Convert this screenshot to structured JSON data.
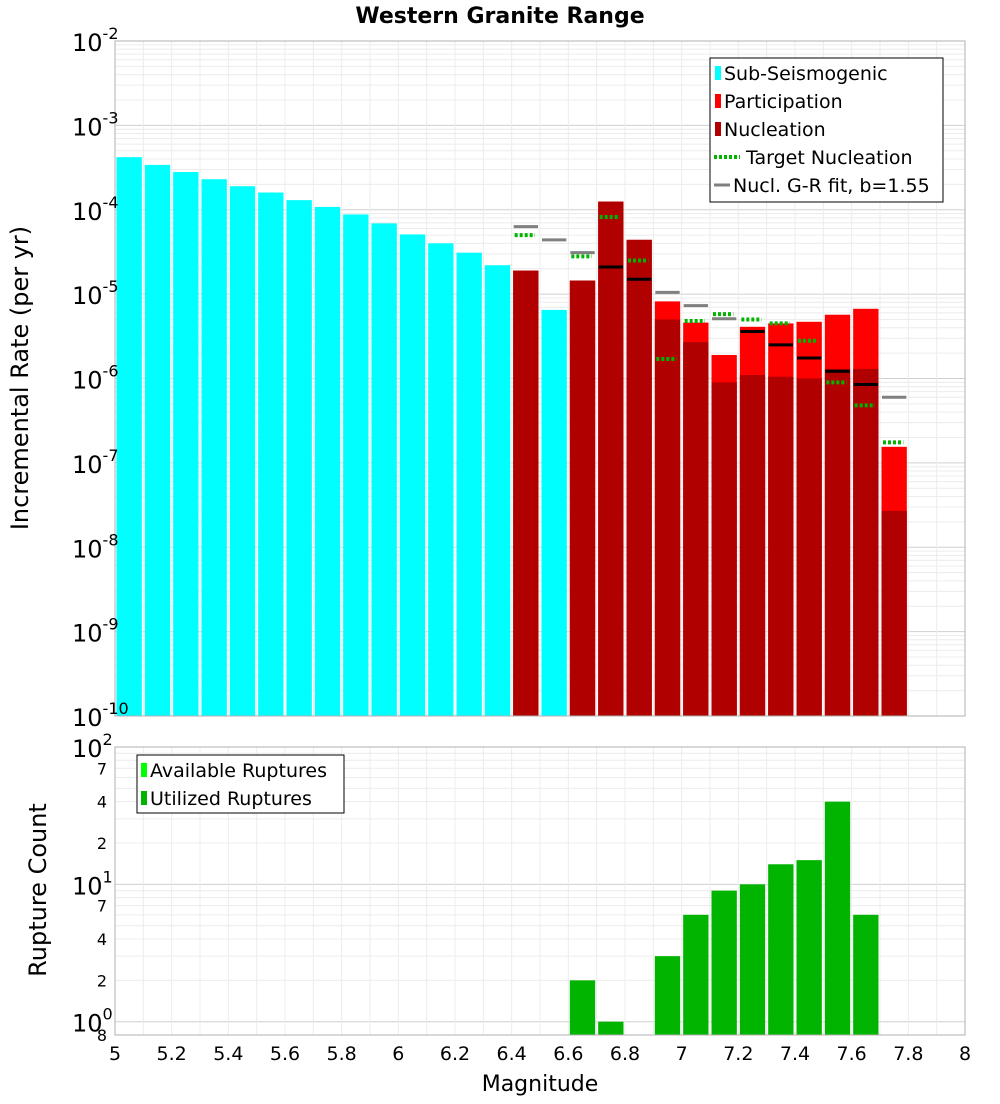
{
  "chart_data": [
    {
      "type": "bar",
      "title": "Western Granite Range",
      "xlabel": "",
      "ylabel": "Incremental Rate (per yr)",
      "yscale": "log",
      "ylim": [
        1e-10,
        0.01
      ],
      "xlim": [
        5,
        8
      ],
      "y_ticks": [
        {
          "base": "10",
          "exp": "-2"
        },
        {
          "base": "10",
          "exp": "-3"
        },
        {
          "base": "10",
          "exp": "-4"
        },
        {
          "base": "10",
          "exp": "-5"
        },
        {
          "base": "10",
          "exp": "-6"
        },
        {
          "base": "10",
          "exp": "-7"
        },
        {
          "base": "10",
          "exp": "-8"
        },
        {
          "base": "10",
          "exp": "-9"
        },
        {
          "base": "10",
          "exp": "-10"
        }
      ],
      "legend": {
        "placement": "top-right",
        "items": [
          {
            "label": "Sub-Seismogenic",
            "color": "#00ffff",
            "kind": "box"
          },
          {
            "label": "Participation",
            "color": "#ff0000",
            "kind": "box"
          },
          {
            "label": "Nucleation",
            "color": "#b00000",
            "kind": "box"
          },
          {
            "label": "Target Nucleation",
            "color": "#00b400",
            "kind": "dotted"
          },
          {
            "label": "Nucl. G-R fit, b=1.55",
            "color": "#808080",
            "kind": "line"
          }
        ]
      },
      "series": [
        {
          "name": "Sub-Seismogenic",
          "color": "#00ffff",
          "x": [
            5.05,
            5.15,
            5.25,
            5.35,
            5.45,
            5.55,
            5.65,
            5.75,
            5.85,
            5.95,
            6.05,
            6.15,
            6.25,
            6.35,
            6.55
          ],
          "values": [
            0.00042,
            0.00034,
            0.00028,
            0.00023,
            0.00019,
            0.00016,
            0.00013,
            0.000108,
            8.8e-05,
            6.9e-05,
            5.1e-05,
            4e-05,
            3.1e-05,
            2.2e-05,
            6.5e-06
          ]
        },
        {
          "name": "Participation",
          "color": "#ff0000",
          "x": [
            6.45,
            6.65,
            6.75,
            6.85,
            6.95,
            7.05,
            7.15,
            7.25,
            7.35,
            7.45,
            7.55,
            7.65,
            7.75
          ],
          "values": [
            1.9e-05,
            1.45e-05,
            0.000125,
            4.4e-05,
            8.2e-06,
            4.6e-06,
            1.9e-06,
            4.1e-06,
            4.5e-06,
            4.7e-06,
            5.7e-06,
            6.7e-06,
            1.55e-07
          ]
        },
        {
          "name": "Nucleation",
          "color": "#b00000",
          "x": [
            6.45,
            6.65,
            6.75,
            6.85,
            6.95,
            7.05,
            7.15,
            7.25,
            7.35,
            7.45,
            7.55,
            7.65,
            7.75
          ],
          "values": [
            1.9e-05,
            1.45e-05,
            0.000125,
            4.4e-05,
            5e-06,
            2.7e-06,
            9e-07,
            1.1e-06,
            1.05e-06,
            1e-06,
            1.3e-06,
            1.3e-06,
            2.7e-08
          ]
        },
        {
          "name": "Target Nucleation",
          "color": "#00b400",
          "x": [
            6.45,
            6.65,
            6.75,
            6.85,
            6.95,
            7.05,
            7.15,
            7.25,
            7.35,
            7.45,
            7.55,
            7.65,
            7.75
          ],
          "values": [
            5e-05,
            2.8e-05,
            8.2e-05,
            2.5e-05,
            1.7e-06,
            4.8e-06,
            5.8e-06,
            5e-06,
            4.5e-06,
            2.8e-06,
            9e-07,
            4.8e-07,
            1.75e-07
          ]
        },
        {
          "name": "Nucl. G-R fit, b=1.55",
          "color": "#808080",
          "x": [
            6.45,
            6.55,
            6.65,
            6.75,
            6.85,
            6.95,
            7.05,
            7.15,
            7.25,
            7.35,
            7.45,
            7.55,
            7.65,
            7.75
          ],
          "values": [
            6.3e-05,
            4.4e-05,
            3.1e-05,
            2.1e-05,
            1.5e-05,
            1.05e-05,
            7.3e-06,
            5.1e-06,
            3.6e-06,
            2.5e-06,
            1.75e-06,
            1.22e-06,
            8.5e-07,
            6e-07
          ]
        }
      ]
    },
    {
      "type": "bar",
      "title": "",
      "xlabel": "Magnitude",
      "ylabel": "Rupture Count",
      "yscale": "log",
      "ylim": [
        0.8,
        100
      ],
      "xlim": [
        5,
        8
      ],
      "x_ticks": [
        "5",
        "5.2",
        "5.4",
        "5.6",
        "5.8",
        "6",
        "6.2",
        "6.4",
        "6.6",
        "6.8",
        "7",
        "7.2",
        "7.4",
        "7.6",
        "7.8",
        "8"
      ],
      "x_tick_values": [
        5,
        5.2,
        5.4,
        5.6,
        5.8,
        6,
        6.2,
        6.4,
        6.6,
        6.8,
        7,
        7.2,
        7.4,
        7.6,
        7.8,
        8
      ],
      "y_major_ticks": [
        {
          "base": "10",
          "exp": "2",
          "value": 100
        },
        {
          "base": "10",
          "exp": "1",
          "value": 10
        },
        {
          "base": "10",
          "exp": "0",
          "value": 1
        }
      ],
      "y_minor_labels": [
        {
          "label": "7",
          "value": 70
        },
        {
          "label": "4",
          "value": 40
        },
        {
          "label": "2",
          "value": 20
        },
        {
          "label": "7",
          "value": 7
        },
        {
          "label": "4",
          "value": 4
        },
        {
          "label": "2",
          "value": 2
        },
        {
          "label": "8",
          "value": 0.8
        }
      ],
      "legend": {
        "placement": "top-left",
        "items": [
          {
            "label": "Available Ruptures",
            "color": "#00ff00"
          },
          {
            "label": "Utilized Ruptures",
            "color": "#00b400"
          }
        ]
      },
      "series": [
        {
          "name": "Utilized Ruptures",
          "color": "#00b400",
          "x": [
            6.65,
            6.75,
            6.95,
            7.05,
            7.15,
            7.25,
            7.35,
            7.45,
            7.55,
            7.65
          ],
          "values": [
            2,
            1,
            3,
            6,
            9,
            10,
            14,
            15,
            40,
            6
          ]
        }
      ]
    }
  ]
}
